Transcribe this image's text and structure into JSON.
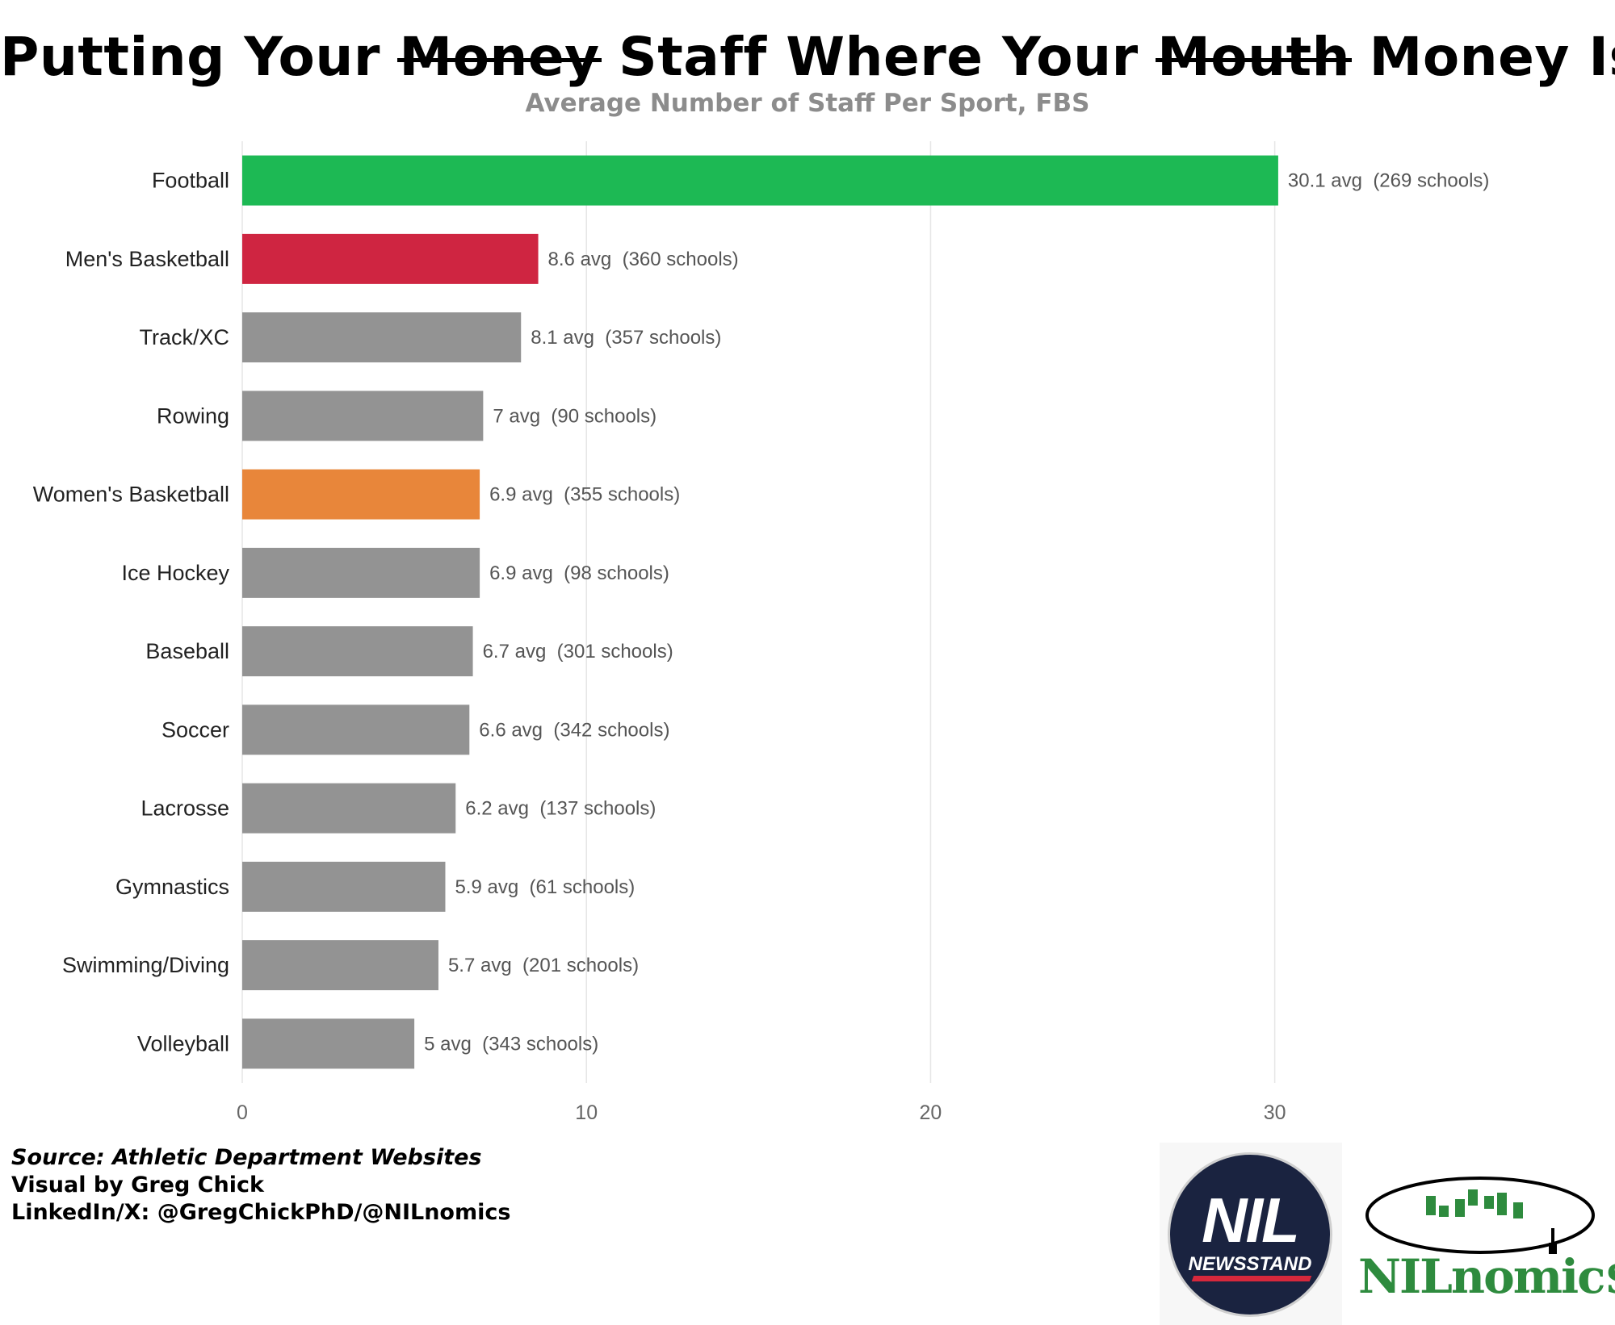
{
  "header": {
    "title_parts": [
      {
        "text": "Putting Your ",
        "struck": false
      },
      {
        "text": "Money",
        "struck": true
      },
      {
        "text": " Staff Where Your ",
        "struck": false
      },
      {
        "text": "Mouth",
        "struck": true
      },
      {
        "text": " Money Is",
        "struck": false
      }
    ],
    "subtitle": "Average Number of Staff Per Sport, FBS"
  },
  "chart_data": {
    "type": "bar",
    "orientation": "horizontal",
    "title": "Putting Your Money Staff Where Your Mouth Money Is",
    "subtitle": "Average Number of Staff Per Sport, FBS",
    "xlabel": "",
    "ylabel": "",
    "xlim": [
      0,
      37
    ],
    "x_ticks": [
      0,
      10,
      20,
      30
    ],
    "grid": "vertical",
    "categories": [
      "Football",
      "Men's Basketball",
      "Track/XC",
      "Rowing",
      "Women's Basketball",
      "Ice Hockey",
      "Baseball",
      "Soccer",
      "Lacrosse",
      "Gymnastics",
      "Swimming/Diving",
      "Volleyball"
    ],
    "values": [
      30.1,
      8.6,
      8.1,
      7,
      6.9,
      6.9,
      6.7,
      6.6,
      6.2,
      5.9,
      5.7,
      5
    ],
    "schools": [
      269,
      360,
      357,
      90,
      355,
      98,
      301,
      342,
      137,
      61,
      201,
      343
    ],
    "data_labels": [
      "30.1 avg  (269 schools)",
      "8.6 avg  (360 schools)",
      "8.1 avg  (357 schools)",
      "7 avg  (90 schools)",
      "6.9 avg  (355 schools)",
      "6.9 avg  (98 schools)",
      "6.7 avg  (301 schools)",
      "6.6 avg  (342 schools)",
      "6.2 avg  (137 schools)",
      "5.9 avg  (61 schools)",
      "5.7 avg  (201 schools)",
      "5 avg  (343 schools)"
    ],
    "colors": [
      "#1db954",
      "#cf2541",
      "#939393",
      "#939393",
      "#e8863a",
      "#939393",
      "#939393",
      "#939393",
      "#939393",
      "#939393",
      "#939393",
      "#939393"
    ]
  },
  "footer": {
    "source": "Source: Athletic Department Websites",
    "visual_by": "Visual by Greg Chick",
    "social": "LinkedIn/X: @GregChickPhD/@NILnomics"
  },
  "logos": {
    "nil_newsstand": {
      "big": "NIL",
      "small": "NEWSSTAND",
      "icon": "nil-newsstand-logo"
    },
    "nilnomics": {
      "word": "NILnomic$",
      "icon": "nilnomics-football-logo"
    }
  }
}
